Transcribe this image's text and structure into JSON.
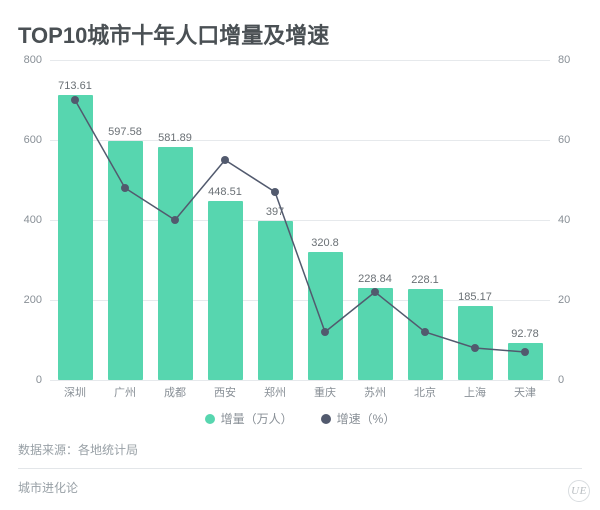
{
  "title": "TOP10城市十年人口增量及增速",
  "chart": {
    "type": "bar+line",
    "categories": [
      "深圳",
      "广州",
      "成都",
      "西安",
      "郑州",
      "重庆",
      "苏州",
      "北京",
      "上海",
      "天津"
    ],
    "bar_series": {
      "name": "增量（万人）",
      "values": [
        713.61,
        597.58,
        581.89,
        448.51,
        397,
        320.8,
        228.84,
        228.1,
        185.17,
        92.78
      ],
      "labels": [
        "713.61",
        "597.58",
        "581.89",
        "448.51",
        "397",
        "320.8",
        "228.84",
        "228.1",
        "185.17",
        "92.78"
      ],
      "color": "#57d6af",
      "bar_width": 0.7
    },
    "line_series": {
      "name": "增速（%）",
      "values": [
        70,
        48,
        40,
        55,
        47,
        12,
        22,
        12,
        8,
        7
      ],
      "color": "#525a6e",
      "marker_radius": 4,
      "line_width": 1.5
    },
    "y_left": {
      "min": 0,
      "max": 800,
      "ticks": [
        0,
        200,
        400,
        600,
        800
      ]
    },
    "y_right": {
      "min": 0,
      "max": 80,
      "ticks": [
        0,
        20,
        40,
        60,
        80
      ]
    },
    "grid_color": "#e6e9ec",
    "background_color": "#ffffff",
    "title_fontsize": 22,
    "axis_fontsize": 11,
    "label_fontsize": 11
  },
  "legend": {
    "items": [
      {
        "label": "增量（万人）",
        "color": "#57d6af",
        "shape": "dot"
      },
      {
        "label": "增速（%）",
        "color": "#525a6e",
        "shape": "dot"
      }
    ]
  },
  "footer": {
    "source_label": "数据来源：各地统计局",
    "credit": "城市进化论"
  },
  "watermark": "UE"
}
